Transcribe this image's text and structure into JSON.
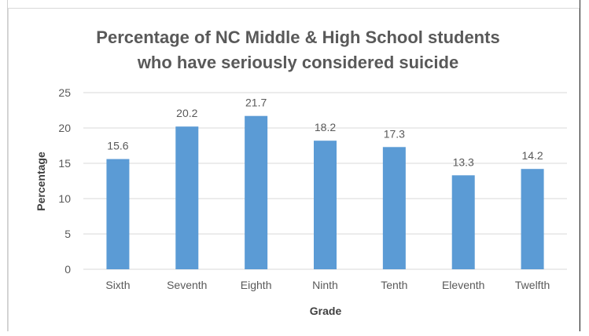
{
  "chart_data": {
    "type": "bar",
    "title": "Percentage of NC Middle & High School students who have seriously considered suicide",
    "title_lines": [
      "Percentage of NC Middle & High School students",
      "who have seriously considered suicide"
    ],
    "xlabel": "Grade",
    "ylabel": "Percentage",
    "categories": [
      "Sixth",
      "Seventh",
      "Eighth",
      "Ninth",
      "Tenth",
      "Eleventh",
      "Twelfth"
    ],
    "values": [
      15.6,
      20.2,
      21.7,
      18.2,
      17.3,
      13.3,
      14.2
    ],
    "value_labels": [
      "15.6",
      "20.2",
      "21.7",
      "18.2",
      "17.3",
      "13.3",
      "14.2"
    ],
    "ylim": [
      0,
      25
    ],
    "yticks": [
      0,
      5,
      10,
      15,
      20,
      25
    ],
    "grid": true,
    "legend": "none",
    "colors": {
      "bar": "#5b9bd5",
      "grid": "#d9d9d9",
      "title": "#595959",
      "text": "#595959",
      "axis_title": "#404040"
    }
  }
}
